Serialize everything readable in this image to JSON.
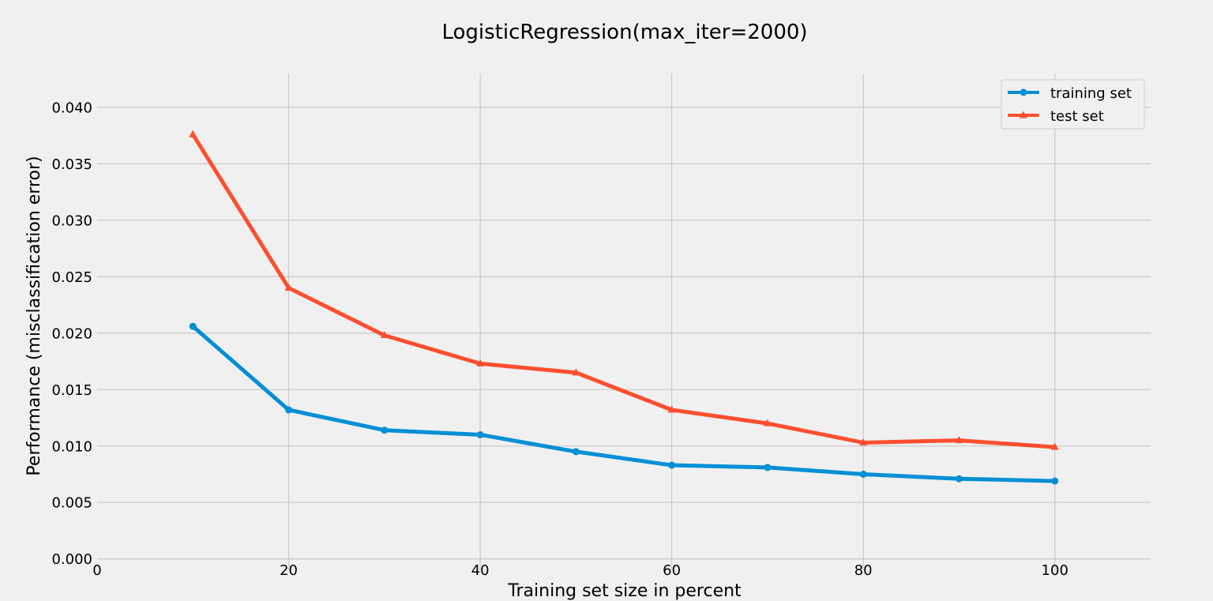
{
  "chart_data": {
    "type": "line",
    "title": "LogisticRegression(max_iter=2000)",
    "xlabel": "Training set size in percent",
    "ylabel": "Performance (misclassification error)",
    "xlim": [
      0,
      110
    ],
    "ylim": [
      -0.001,
      0.043
    ],
    "x": [
      10,
      20,
      30,
      40,
      50,
      60,
      70,
      80,
      90,
      100
    ],
    "xticks": [
      0,
      20,
      40,
      60,
      80,
      100
    ],
    "xtick_labels": [
      "0",
      "20",
      "40",
      "60",
      "80",
      "100"
    ],
    "yticks": [
      0.0,
      0.005,
      0.01,
      0.015,
      0.02,
      0.025,
      0.03,
      0.035,
      0.04
    ],
    "ytick_labels": [
      "0.000",
      "0.005",
      "0.010",
      "0.015",
      "0.020",
      "0.025",
      "0.030",
      "0.035",
      "0.040"
    ],
    "grid": true,
    "legend_position": "top-right",
    "series": [
      {
        "name": "training set",
        "color": "#008fd5",
        "marker": "circle",
        "values": [
          0.0206,
          0.0132,
          0.0114,
          0.011,
          0.0095,
          0.0083,
          0.0081,
          0.0075,
          0.0071,
          0.0069
        ]
      },
      {
        "name": "test set",
        "color": "#fc4f30",
        "marker": "triangle",
        "values": [
          0.0376,
          0.024,
          0.0198,
          0.0173,
          0.0165,
          0.0132,
          0.012,
          0.0103,
          0.0105,
          0.0099
        ]
      }
    ]
  }
}
